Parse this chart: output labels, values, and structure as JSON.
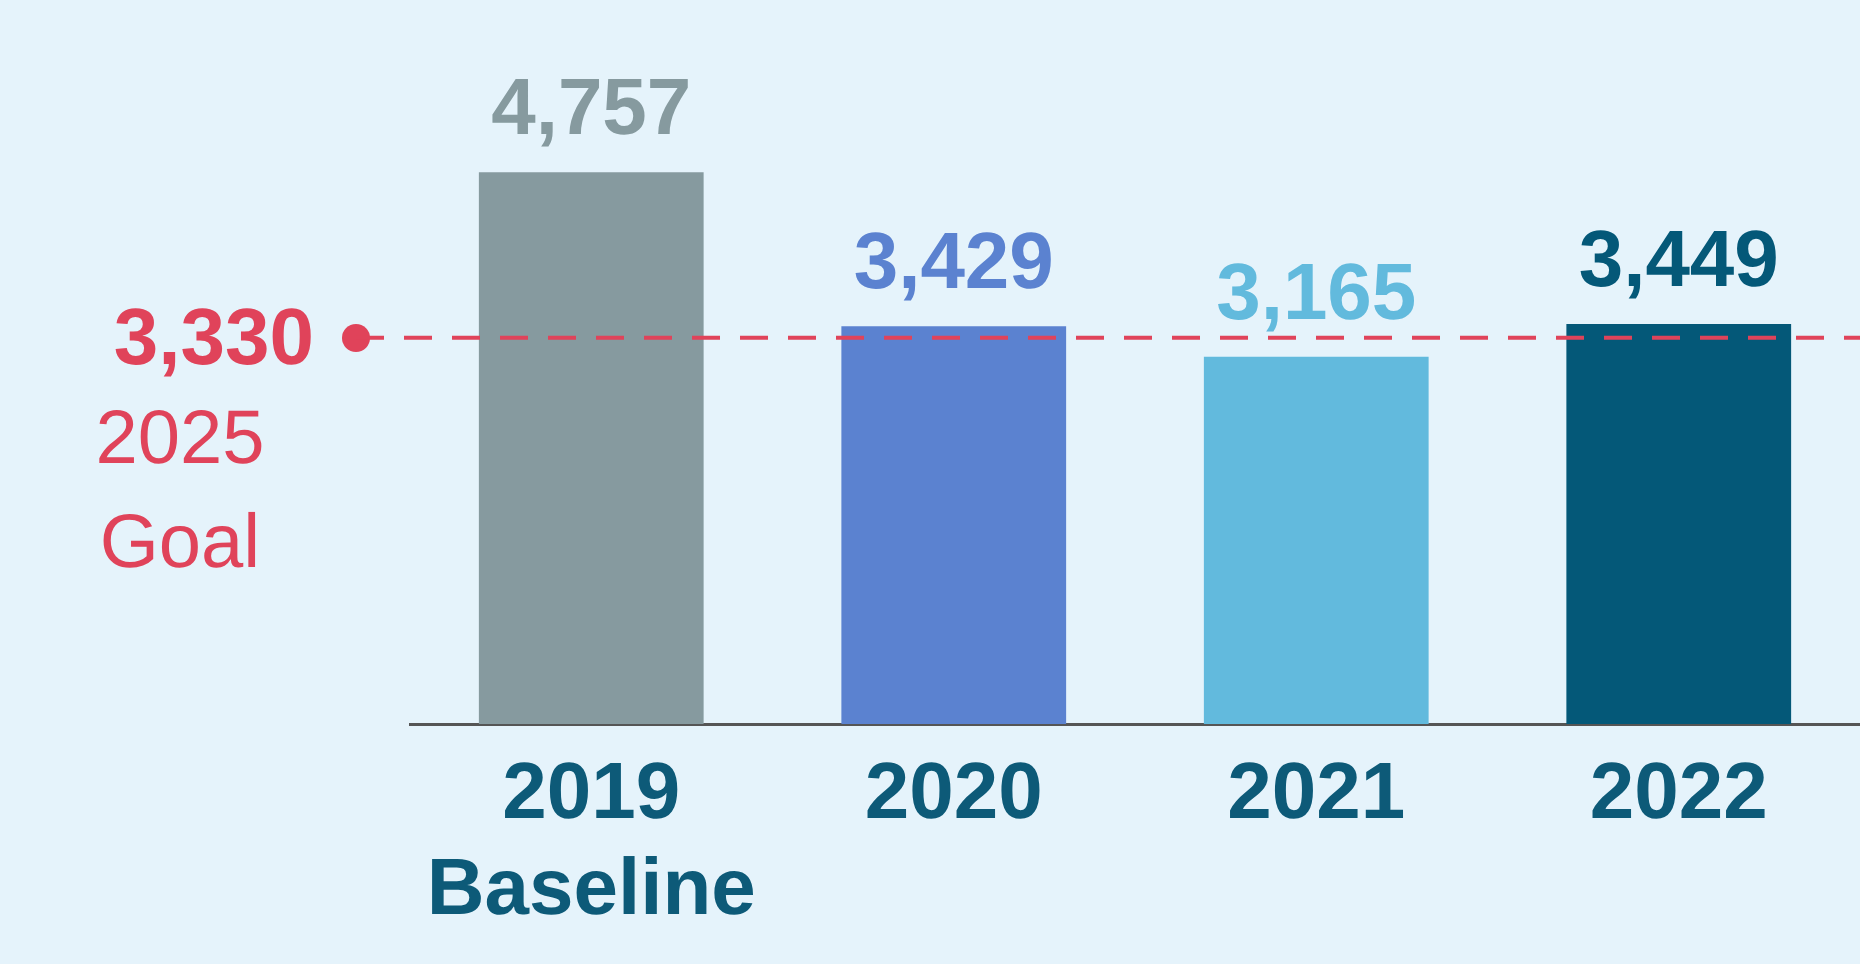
{
  "chart_data": {
    "type": "bar",
    "categories": [
      "2019 Baseline",
      "2020",
      "2021",
      "2022"
    ],
    "values": [
      4757,
      3429,
      3165,
      3449
    ],
    "colors": [
      "#869a9f",
      "#5b82d0",
      "#62badd",
      "#045878"
    ],
    "value_labels": [
      "4,757",
      "3,429",
      "3,165",
      "3,449"
    ],
    "tick_labels": "x",
    "grid": false,
    "ref_lines": [
      {
        "axis": "y",
        "value": 3330,
        "label": "3,330 2025 Goal",
        "color": "#e0435a",
        "line_style": "dashed"
      }
    ]
  }
}
